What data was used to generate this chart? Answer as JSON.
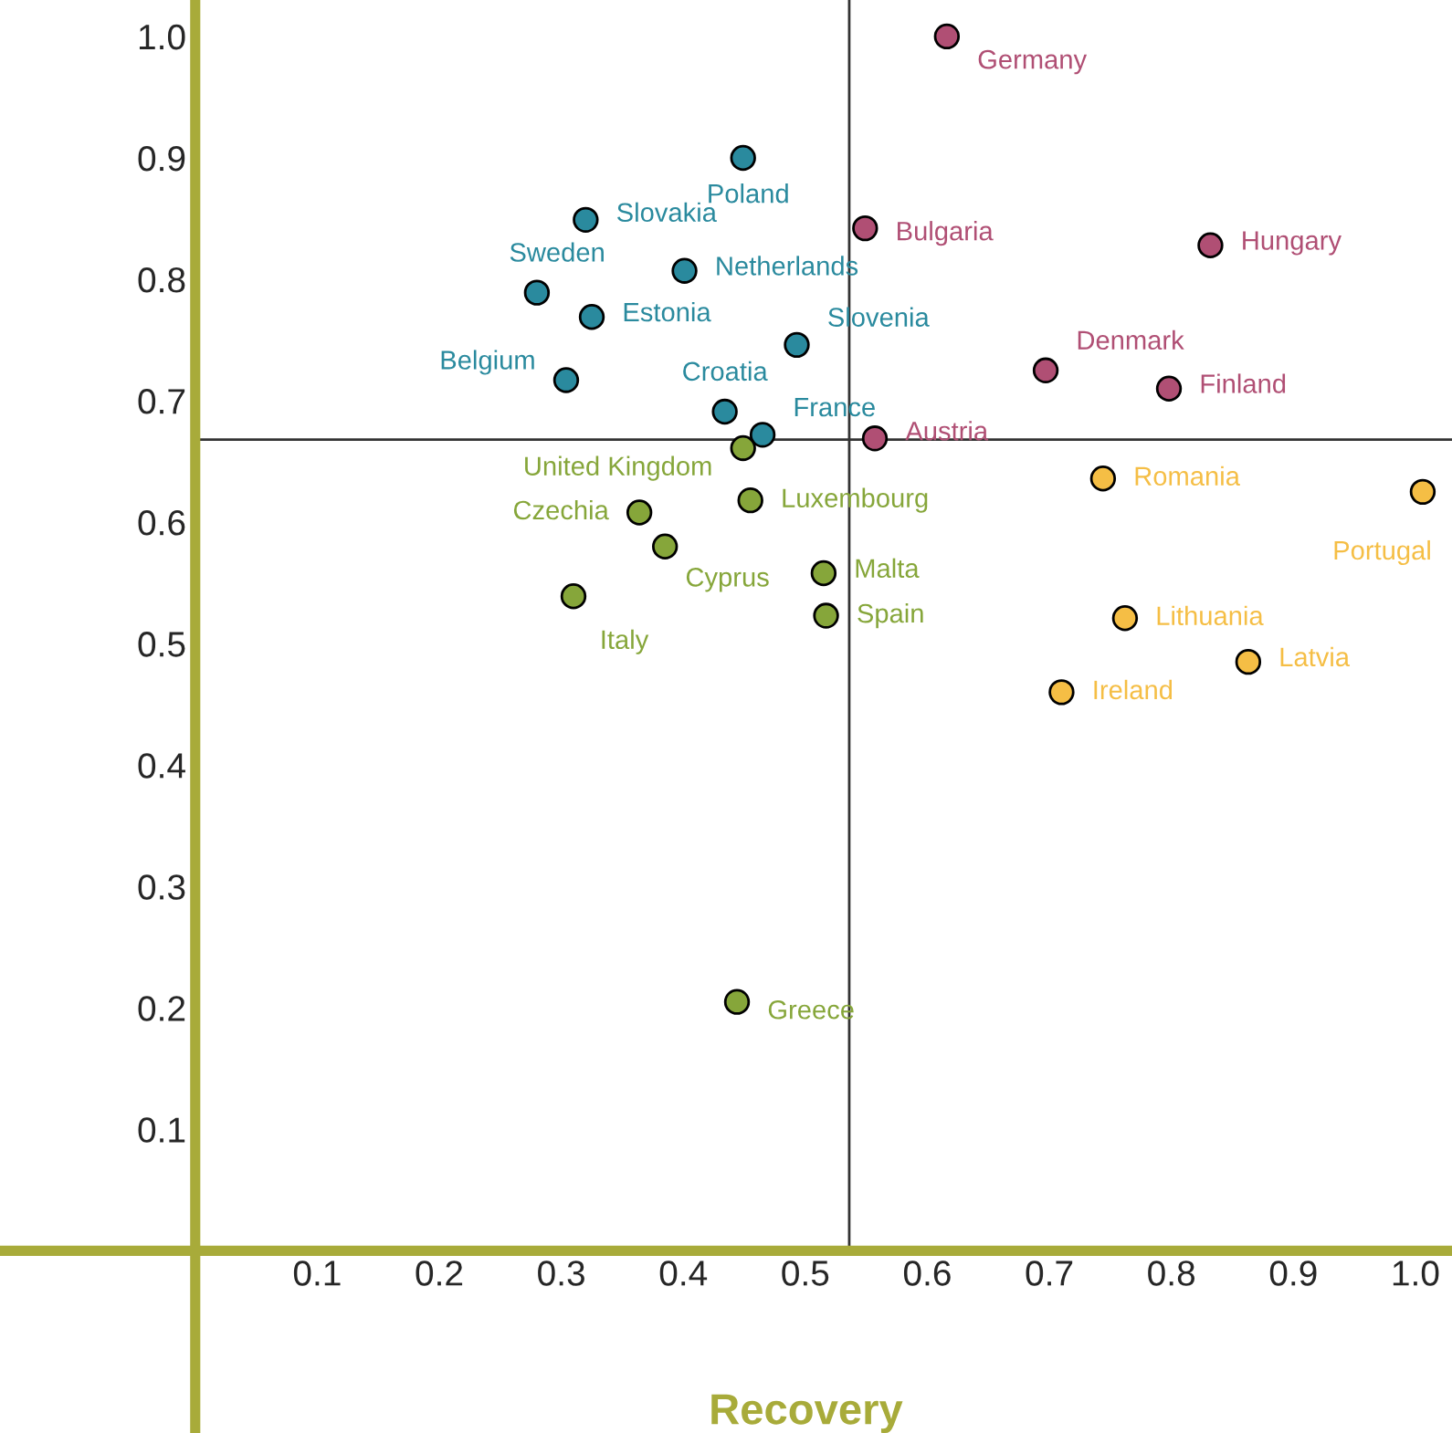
{
  "chart_data": {
    "type": "scatter",
    "xlabel": "Recovery",
    "xlim": [
      -0.16,
      1.03
    ],
    "ylim": [
      -0.15,
      1.03
    ],
    "xticks": [
      0.1,
      0.2,
      0.3,
      0.4,
      0.5,
      0.6,
      0.7,
      0.8,
      0.9,
      {
        "value": 1,
        "label": "1.0"
      }
    ],
    "yticks": [
      0.1,
      0.2,
      0.3,
      0.4,
      0.5,
      0.6,
      0.7,
      0.8,
      0.9,
      {
        "value": 1,
        "label": "1.0"
      }
    ],
    "grid": false,
    "marker": "circle",
    "series": [
      {
        "color": "#2a8a9e",
        "x": [
          0.449,
          0.32,
          0.28,
          0.401,
          0.325,
          0.493,
          0.304,
          0.434,
          0.465
        ],
        "values": [
          0.9,
          0.849,
          0.789,
          0.807,
          0.769,
          0.746,
          0.717,
          0.691,
          0.672
        ]
      },
      {
        "color": "#b04f74",
        "x": [
          0.616,
          0.549,
          0.832,
          0.697,
          0.798,
          0.557
        ],
        "values": [
          1.0,
          0.842,
          0.828,
          0.725,
          0.71,
          0.669
        ]
      },
      {
        "color": "#86a63a",
        "x": [
          0.449,
          0.455,
          0.364,
          0.385,
          0.515,
          0.517,
          0.31,
          0.444
        ],
        "values": [
          0.661,
          0.618,
          0.608,
          0.58,
          0.558,
          0.523,
          0.539,
          0.205
        ]
      },
      {
        "color": "#f5be45",
        "x": [
          0.744,
          1.006,
          0.762,
          0.863,
          0.71
        ],
        "values": [
          0.636,
          0.625,
          0.521,
          0.485,
          0.46
        ]
      }
    ],
    "ref_lines": [
      {
        "axis": "x",
        "value": 0.536,
        "color": "#333333"
      },
      {
        "axis": "y",
        "value": 0.668,
        "color": "#333333"
      }
    ],
    "annotations": [
      {
        "text": "Poland",
        "x": 0.449,
        "y": 0.9
      },
      {
        "text": "Slovakia",
        "x": 0.32,
        "y": 0.849
      },
      {
        "text": "Sweden",
        "x": 0.28,
        "y": 0.789
      },
      {
        "text": "Netherlands",
        "x": 0.401,
        "y": 0.807
      },
      {
        "text": "Estonia",
        "x": 0.325,
        "y": 0.769
      },
      {
        "text": "Slovenia",
        "x": 0.493,
        "y": 0.746
      },
      {
        "text": "Belgium",
        "x": 0.304,
        "y": 0.717
      },
      {
        "text": "Croatia",
        "x": 0.434,
        "y": 0.691
      },
      {
        "text": "France",
        "x": 0.465,
        "y": 0.672
      },
      {
        "text": "Germany",
        "x": 0.616,
        "y": 1.0
      },
      {
        "text": "Bulgaria",
        "x": 0.549,
        "y": 0.842
      },
      {
        "text": "Hungary",
        "x": 0.832,
        "y": 0.828
      },
      {
        "text": "Denmark",
        "x": 0.697,
        "y": 0.725
      },
      {
        "text": "Finland",
        "x": 0.798,
        "y": 0.71
      },
      {
        "text": "Austria",
        "x": 0.557,
        "y": 0.669
      },
      {
        "text": "United Kingdom",
        "x": 0.449,
        "y": 0.661
      },
      {
        "text": "Luxembourg",
        "x": 0.455,
        "y": 0.618
      },
      {
        "text": "Czechia",
        "x": 0.364,
        "y": 0.608
      },
      {
        "text": "Cyprus",
        "x": 0.385,
        "y": 0.58
      },
      {
        "text": "Malta",
        "x": 0.515,
        "y": 0.558
      },
      {
        "text": "Spain",
        "x": 0.517,
        "y": 0.523
      },
      {
        "text": "Italy",
        "x": 0.31,
        "y": 0.539
      },
      {
        "text": "Greece",
        "x": 0.444,
        "y": 0.205
      },
      {
        "text": "Romania",
        "x": 0.744,
        "y": 0.636
      },
      {
        "text": "Portugal",
        "x": 1.006,
        "y": 0.625
      },
      {
        "text": "Lithuania",
        "x": 0.762,
        "y": 0.521
      },
      {
        "text": "Latvia",
        "x": 0.863,
        "y": 0.485
      },
      {
        "text": "Ireland",
        "x": 0.71,
        "y": 0.46
      }
    ]
  }
}
